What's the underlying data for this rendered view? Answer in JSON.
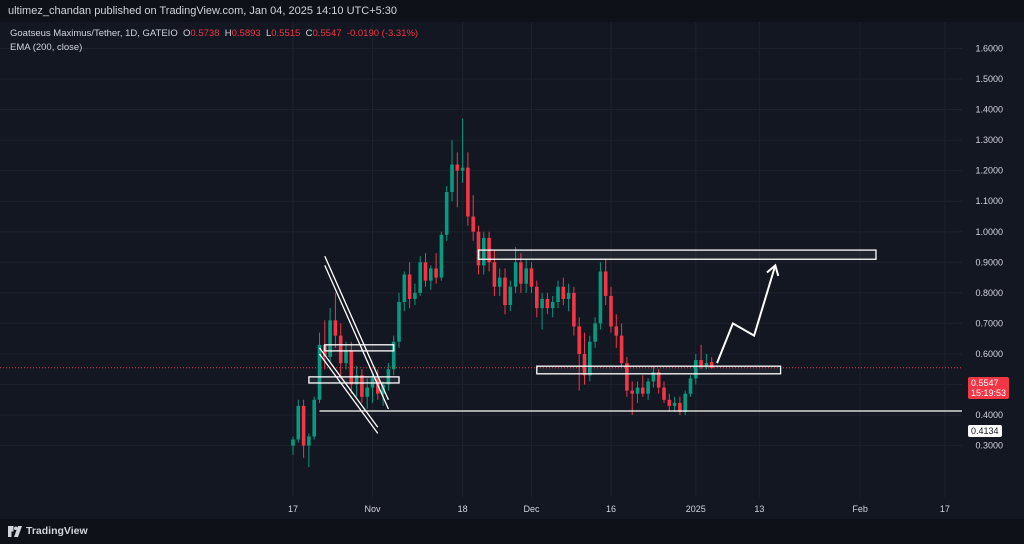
{
  "header": {
    "publisher_text": "ultimez_chandan published on TradingView.com, Jan 04, 2025 14:10 UTC+5:30"
  },
  "legend": {
    "symbol": "Goatseus Maximus/Tether, 1D, GATEIO",
    "o_label": "O",
    "o_value": "0.5738",
    "h_label": "H",
    "h_value": "0.5893",
    "l_label": "L",
    "l_value": "0.5515",
    "c_label": "C",
    "c_value": "0.5547",
    "change": "-0.0190 (-3.31%)",
    "indicator": "EMA (200, close)"
  },
  "price_tags": {
    "last_price": "0.5547",
    "countdown": "15:19:53",
    "support_level": "0.4134"
  },
  "footer": {
    "brand": "TradingView"
  },
  "colors": {
    "background": "#131722",
    "up": "#089981",
    "down": "#f23645",
    "annotation": "#ffffff",
    "grid": "#1e222d"
  },
  "chart_data": {
    "type": "candlestick",
    "title": "Goatseus Maximus/Tether, 1D, GATEIO",
    "ylim": [
      0.23,
      1.68
    ],
    "y_ticks": [
      "1.6000",
      "1.5000",
      "1.4000",
      "1.3000",
      "1.2000",
      "1.1000",
      "1.0000",
      "0.9000",
      "0.8000",
      "0.7000",
      "0.6000",
      "0.5000",
      "0.4000",
      "0.3000"
    ],
    "x_ticks": [
      "17",
      "Nov",
      "18",
      "Dec",
      "16",
      "2025",
      "13",
      "Feb",
      "17"
    ],
    "grid": true,
    "candles": [
      {
        "date": "2024-10-17",
        "o": 0.3,
        "h": 0.33,
        "l": 0.27,
        "c": 0.32
      },
      {
        "date": "2024-10-18",
        "o": 0.32,
        "h": 0.45,
        "l": 0.31,
        "c": 0.43
      },
      {
        "date": "2024-10-19",
        "o": 0.43,
        "h": 0.45,
        "l": 0.26,
        "c": 0.3
      },
      {
        "date": "2024-10-20",
        "o": 0.3,
        "h": 0.34,
        "l": 0.23,
        "c": 0.33
      },
      {
        "date": "2024-10-21",
        "o": 0.33,
        "h": 0.46,
        "l": 0.32,
        "c": 0.45
      },
      {
        "date": "2024-10-22",
        "o": 0.45,
        "h": 0.67,
        "l": 0.44,
        "c": 0.63
      },
      {
        "date": "2024-10-23",
        "o": 0.63,
        "h": 0.71,
        "l": 0.55,
        "c": 0.59
      },
      {
        "date": "2024-10-24",
        "o": 0.59,
        "h": 0.75,
        "l": 0.57,
        "c": 0.71
      },
      {
        "date": "2024-10-25",
        "o": 0.71,
        "h": 0.8,
        "l": 0.62,
        "c": 0.66
      },
      {
        "date": "2024-10-26",
        "o": 0.66,
        "h": 0.7,
        "l": 0.52,
        "c": 0.57
      },
      {
        "date": "2024-10-27",
        "o": 0.57,
        "h": 0.64,
        "l": 0.55,
        "c": 0.61
      },
      {
        "date": "2024-10-28",
        "o": 0.61,
        "h": 0.64,
        "l": 0.47,
        "c": 0.5
      },
      {
        "date": "2024-10-29",
        "o": 0.5,
        "h": 0.56,
        "l": 0.46,
        "c": 0.53
      },
      {
        "date": "2024-10-30",
        "o": 0.53,
        "h": 0.55,
        "l": 0.44,
        "c": 0.46
      },
      {
        "date": "2024-10-31",
        "o": 0.46,
        "h": 0.52,
        "l": 0.42,
        "c": 0.49
      },
      {
        "date": "2024-11-01",
        "o": 0.49,
        "h": 0.54,
        "l": 0.44,
        "c": 0.52
      },
      {
        "date": "2024-11-02",
        "o": 0.52,
        "h": 0.55,
        "l": 0.45,
        "c": 0.47
      },
      {
        "date": "2024-11-03",
        "o": 0.47,
        "h": 0.51,
        "l": 0.43,
        "c": 0.5
      },
      {
        "date": "2024-11-04",
        "o": 0.5,
        "h": 0.57,
        "l": 0.48,
        "c": 0.55
      },
      {
        "date": "2024-11-05",
        "o": 0.55,
        "h": 0.66,
        "l": 0.53,
        "c": 0.64
      },
      {
        "date": "2024-11-06",
        "o": 0.64,
        "h": 0.8,
        "l": 0.62,
        "c": 0.77
      },
      {
        "date": "2024-11-07",
        "o": 0.77,
        "h": 0.87,
        "l": 0.74,
        "c": 0.86
      },
      {
        "date": "2024-11-08",
        "o": 0.86,
        "h": 0.9,
        "l": 0.75,
        "c": 0.78
      },
      {
        "date": "2024-11-09",
        "o": 0.78,
        "h": 0.83,
        "l": 0.76,
        "c": 0.8
      },
      {
        "date": "2024-11-10",
        "o": 0.8,
        "h": 0.92,
        "l": 0.79,
        "c": 0.9
      },
      {
        "date": "2024-11-11",
        "o": 0.9,
        "h": 0.93,
        "l": 0.82,
        "c": 0.84
      },
      {
        "date": "2024-11-12",
        "o": 0.84,
        "h": 0.89,
        "l": 0.81,
        "c": 0.88
      },
      {
        "date": "2024-11-13",
        "o": 0.88,
        "h": 0.93,
        "l": 0.83,
        "c": 0.85
      },
      {
        "date": "2024-11-14",
        "o": 0.85,
        "h": 1.0,
        "l": 0.84,
        "c": 0.99
      },
      {
        "date": "2024-11-15",
        "o": 0.99,
        "h": 1.15,
        "l": 0.97,
        "c": 1.13
      },
      {
        "date": "2024-11-16",
        "o": 1.13,
        "h": 1.3,
        "l": 1.1,
        "c": 1.22
      },
      {
        "date": "2024-11-17",
        "o": 1.22,
        "h": 1.26,
        "l": 1.08,
        "c": 1.2
      },
      {
        "date": "2024-11-18",
        "o": 1.2,
        "h": 1.37,
        "l": 1.16,
        "c": 1.21
      },
      {
        "date": "2024-11-19",
        "o": 1.21,
        "h": 1.26,
        "l": 1.02,
        "c": 1.05
      },
      {
        "date": "2024-11-20",
        "o": 1.05,
        "h": 1.12,
        "l": 0.97,
        "c": 1.0
      },
      {
        "date": "2024-11-21",
        "o": 1.0,
        "h": 1.02,
        "l": 0.86,
        "c": 0.89
      },
      {
        "date": "2024-11-22",
        "o": 0.89,
        "h": 1.0,
        "l": 0.86,
        "c": 0.98
      },
      {
        "date": "2024-11-23",
        "o": 0.98,
        "h": 1.0,
        "l": 0.87,
        "c": 0.9
      },
      {
        "date": "2024-11-24",
        "o": 0.9,
        "h": 0.94,
        "l": 0.79,
        "c": 0.82
      },
      {
        "date": "2024-11-25",
        "o": 0.82,
        "h": 0.88,
        "l": 0.79,
        "c": 0.85
      },
      {
        "date": "2024-11-26",
        "o": 0.85,
        "h": 0.88,
        "l": 0.73,
        "c": 0.76
      },
      {
        "date": "2024-11-27",
        "o": 0.76,
        "h": 0.84,
        "l": 0.74,
        "c": 0.82
      },
      {
        "date": "2024-11-28",
        "o": 0.82,
        "h": 0.95,
        "l": 0.8,
        "c": 0.9
      },
      {
        "date": "2024-11-29",
        "o": 0.9,
        "h": 0.93,
        "l": 0.8,
        "c": 0.83
      },
      {
        "date": "2024-11-30",
        "o": 0.83,
        "h": 0.91,
        "l": 0.8,
        "c": 0.88
      },
      {
        "date": "2024-12-01",
        "o": 0.88,
        "h": 0.9,
        "l": 0.8,
        "c": 0.82
      },
      {
        "date": "2024-12-02",
        "o": 0.82,
        "h": 0.84,
        "l": 0.72,
        "c": 0.75
      },
      {
        "date": "2024-12-03",
        "o": 0.75,
        "h": 0.8,
        "l": 0.68,
        "c": 0.78
      },
      {
        "date": "2024-12-04",
        "o": 0.78,
        "h": 0.8,
        "l": 0.73,
        "c": 0.75
      },
      {
        "date": "2024-12-05",
        "o": 0.75,
        "h": 0.79,
        "l": 0.72,
        "c": 0.77
      },
      {
        "date": "2024-12-06",
        "o": 0.77,
        "h": 0.84,
        "l": 0.75,
        "c": 0.82
      },
      {
        "date": "2024-12-07",
        "o": 0.82,
        "h": 0.85,
        "l": 0.76,
        "c": 0.78
      },
      {
        "date": "2024-12-08",
        "o": 0.78,
        "h": 0.83,
        "l": 0.74,
        "c": 0.8
      },
      {
        "date": "2024-12-09",
        "o": 0.8,
        "h": 0.82,
        "l": 0.66,
        "c": 0.69
      },
      {
        "date": "2024-12-10",
        "o": 0.69,
        "h": 0.72,
        "l": 0.48,
        "c": 0.6
      },
      {
        "date": "2024-12-11",
        "o": 0.6,
        "h": 0.67,
        "l": 0.5,
        "c": 0.53
      },
      {
        "date": "2024-12-12",
        "o": 0.53,
        "h": 0.66,
        "l": 0.51,
        "c": 0.64
      },
      {
        "date": "2024-12-13",
        "o": 0.64,
        "h": 0.72,
        "l": 0.62,
        "c": 0.7
      },
      {
        "date": "2024-12-14",
        "o": 0.7,
        "h": 0.9,
        "l": 0.68,
        "c": 0.87
      },
      {
        "date": "2024-12-15",
        "o": 0.87,
        "h": 0.91,
        "l": 0.76,
        "c": 0.79
      },
      {
        "date": "2024-12-16",
        "o": 0.79,
        "h": 0.82,
        "l": 0.67,
        "c": 0.69
      },
      {
        "date": "2024-12-17",
        "o": 0.69,
        "h": 0.73,
        "l": 0.62,
        "c": 0.66
      },
      {
        "date": "2024-12-18",
        "o": 0.66,
        "h": 0.7,
        "l": 0.56,
        "c": 0.57
      },
      {
        "date": "2024-12-19",
        "o": 0.57,
        "h": 0.59,
        "l": 0.46,
        "c": 0.48
      },
      {
        "date": "2024-12-20",
        "o": 0.48,
        "h": 0.51,
        "l": 0.4,
        "c": 0.47
      },
      {
        "date": "2024-12-21",
        "o": 0.47,
        "h": 0.51,
        "l": 0.44,
        "c": 0.49
      },
      {
        "date": "2024-12-22",
        "o": 0.49,
        "h": 0.53,
        "l": 0.46,
        "c": 0.47
      },
      {
        "date": "2024-12-23",
        "o": 0.47,
        "h": 0.52,
        "l": 0.45,
        "c": 0.51
      },
      {
        "date": "2024-12-24",
        "o": 0.51,
        "h": 0.56,
        "l": 0.49,
        "c": 0.54
      },
      {
        "date": "2024-12-25",
        "o": 0.54,
        "h": 0.55,
        "l": 0.47,
        "c": 0.49
      },
      {
        "date": "2024-12-26",
        "o": 0.49,
        "h": 0.51,
        "l": 0.44,
        "c": 0.45
      },
      {
        "date": "2024-12-27",
        "o": 0.45,
        "h": 0.47,
        "l": 0.41,
        "c": 0.43
      },
      {
        "date": "2024-12-28",
        "o": 0.43,
        "h": 0.46,
        "l": 0.41,
        "c": 0.44
      },
      {
        "date": "2024-12-29",
        "o": 0.44,
        "h": 0.46,
        "l": 0.4,
        "c": 0.41
      },
      {
        "date": "2024-12-30",
        "o": 0.41,
        "h": 0.48,
        "l": 0.4,
        "c": 0.47
      },
      {
        "date": "2024-12-31",
        "o": 0.47,
        "h": 0.53,
        "l": 0.46,
        "c": 0.52
      },
      {
        "date": "2025-01-01",
        "o": 0.52,
        "h": 0.6,
        "l": 0.5,
        "c": 0.58
      },
      {
        "date": "2025-01-02",
        "o": 0.58,
        "h": 0.63,
        "l": 0.55,
        "c": 0.56
      },
      {
        "date": "2025-01-03",
        "o": 0.56,
        "h": 0.6,
        "l": 0.55,
        "c": 0.57
      },
      {
        "date": "2025-01-04",
        "o": 0.5738,
        "h": 0.5893,
        "l": 0.5515,
        "c": 0.5547
      }
    ],
    "annotations": {
      "zones": [
        {
          "date_start": "2024-11-21",
          "date_end": "2025-02-04",
          "price_top": 0.94,
          "price_bottom": 0.91
        },
        {
          "date_start": "2024-12-02",
          "date_end": "2025-01-17",
          "price_top": 0.56,
          "price_bottom": 0.535
        },
        {
          "date_start": "2024-10-23",
          "date_end": "2024-11-05",
          "price_top": 0.63,
          "price_bottom": 0.61
        },
        {
          "date_start": "2024-10-20",
          "date_end": "2024-11-06",
          "price_top": 0.525,
          "price_bottom": 0.505
        }
      ],
      "support_line": {
        "price": 0.4134,
        "date_start": "2024-10-22"
      },
      "trendlines": [
        {
          "from": {
            "date": "2024-10-23",
            "price": 0.92
          },
          "to": {
            "date": "2024-11-04",
            "price": 0.45
          }
        },
        {
          "from": {
            "date": "2024-10-23",
            "price": 0.89
          },
          "to": {
            "date": "2024-11-04",
            "price": 0.42
          }
        },
        {
          "from": {
            "date": "2024-10-22",
            "price": 0.62
          },
          "to": {
            "date": "2024-11-02",
            "price": 0.36
          }
        },
        {
          "from": {
            "date": "2024-10-22",
            "price": 0.6
          },
          "to": {
            "date": "2024-11-02",
            "price": 0.34
          }
        }
      ],
      "projection_path": [
        {
          "date": "2025-01-05",
          "price": 0.57
        },
        {
          "date": "2025-01-08",
          "price": 0.7
        },
        {
          "date": "2025-01-12",
          "price": 0.66
        },
        {
          "date": "2025-01-16",
          "price": 0.89
        }
      ]
    }
  }
}
